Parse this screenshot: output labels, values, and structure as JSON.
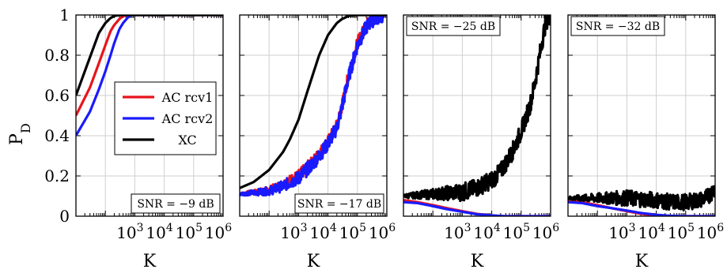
{
  "chart_data": [
    {
      "type": "line",
      "annotation": "SNR = −9 dB",
      "xlabel": "K",
      "ylabel": "P_D",
      "xscale": "log",
      "xlim": [
        10,
        1000000
      ],
      "ylim": [
        0,
        1
      ],
      "grid": true,
      "legend": {
        "placement": "center-right",
        "entries": [
          "AC rcv1",
          "AC rcv2",
          "XC"
        ]
      },
      "series": [
        {
          "name": "AC rcv1",
          "color": "#e8141c",
          "x": [
            10,
            30,
            60,
            100,
            150,
            200,
            300,
            400,
            600,
            1000,
            1000000
          ],
          "y": [
            0.5,
            0.64,
            0.76,
            0.85,
            0.92,
            0.95,
            0.98,
            0.995,
            1.0,
            1.0,
            1.0
          ]
        },
        {
          "name": "AC rcv2",
          "color": "#1a1aff",
          "x": [
            10,
            30,
            60,
            100,
            150,
            200,
            300,
            400,
            600,
            800,
            1000,
            1000000
          ],
          "y": [
            0.4,
            0.52,
            0.63,
            0.72,
            0.8,
            0.86,
            0.93,
            0.96,
            0.99,
            1.0,
            1.0,
            1.0
          ]
        },
        {
          "name": "XC",
          "color": "#000000",
          "x": [
            10,
            20,
            40,
            60,
            100,
            150,
            200,
            300,
            1000000
          ],
          "y": [
            0.6,
            0.72,
            0.84,
            0.91,
            0.96,
            0.985,
            0.995,
            1.0,
            1.0
          ]
        }
      ]
    },
    {
      "type": "line",
      "annotation": "SNR = −17 dB",
      "xlabel": "K",
      "xscale": "log",
      "xlim": [
        10,
        1000000
      ],
      "ylim": [
        0,
        1
      ],
      "grid": true,
      "series": [
        {
          "name": "AC rcv1",
          "color": "#e8141c",
          "x": [
            10,
            100,
            300,
            1000,
            3000,
            5000,
            10000,
            20000,
            30000,
            50000,
            100000,
            200000,
            300000,
            500000,
            1000000
          ],
          "y": [
            0.11,
            0.13,
            0.16,
            0.2,
            0.27,
            0.31,
            0.37,
            0.45,
            0.55,
            0.7,
            0.86,
            0.95,
            0.98,
            1.0,
            1.0
          ],
          "noise": 0.03
        },
        {
          "name": "AC rcv2",
          "color": "#1a1aff",
          "x": [
            10,
            100,
            300,
            1000,
            3000,
            5000,
            10000,
            20000,
            30000,
            50000,
            100000,
            200000,
            300000,
            500000,
            1000000
          ],
          "y": [
            0.11,
            0.125,
            0.15,
            0.19,
            0.26,
            0.3,
            0.36,
            0.44,
            0.54,
            0.69,
            0.85,
            0.94,
            0.97,
            0.99,
            1.0
          ],
          "noise": 0.035
        },
        {
          "name": "XC",
          "color": "#000000",
          "x": [
            10,
            30,
            100,
            300,
            500,
            1000,
            2000,
            3000,
            5000,
            10000,
            20000,
            30000,
            50000,
            100000,
            1000000
          ],
          "y": [
            0.14,
            0.17,
            0.23,
            0.32,
            0.38,
            0.48,
            0.62,
            0.7,
            0.8,
            0.9,
            0.96,
            0.98,
            0.995,
            1.0,
            1.0
          ]
        }
      ]
    },
    {
      "type": "line",
      "annotation": "SNR = −25 dB",
      "xlabel": "K",
      "xscale": "log",
      "xlim": [
        10,
        1000000
      ],
      "ylim": [
        0,
        1
      ],
      "grid": true,
      "series": [
        {
          "name": "AC rcv1",
          "color": "#e8141c",
          "x": [
            10,
            30,
            100,
            300,
            1000,
            3000,
            10000,
            20000,
            1000000
          ],
          "y": [
            0.08,
            0.07,
            0.055,
            0.04,
            0.025,
            0.012,
            0.003,
            0.0,
            0.0
          ]
        },
        {
          "name": "AC rcv2",
          "color": "#1a1aff",
          "x": [
            10,
            30,
            100,
            300,
            1000,
            3000,
            10000,
            30000,
            1000000
          ],
          "y": [
            0.07,
            0.065,
            0.05,
            0.035,
            0.022,
            0.01,
            0.004,
            0.0,
            0.0
          ]
        },
        {
          "name": "XC",
          "color": "#000000",
          "x": [
            10,
            100,
            1000,
            3000,
            10000,
            20000,
            50000,
            100000,
            200000,
            300000,
            500000,
            700000,
            1000000
          ],
          "y": [
            0.1,
            0.11,
            0.12,
            0.14,
            0.18,
            0.22,
            0.32,
            0.42,
            0.55,
            0.67,
            0.86,
            0.97,
            1.0
          ],
          "noise": 0.045
        }
      ]
    },
    {
      "type": "line",
      "annotation": "SNR = −32 dB",
      "xlabel": "K",
      "xscale": "log",
      "xlim": [
        10,
        1000000
      ],
      "ylim": [
        0,
        1
      ],
      "grid": true,
      "series": [
        {
          "name": "AC rcv1",
          "color": "#e8141c",
          "x": [
            10,
            30,
            100,
            300,
            1000,
            3000,
            10000,
            30000,
            1000000
          ],
          "y": [
            0.08,
            0.07,
            0.055,
            0.04,
            0.025,
            0.012,
            0.004,
            0.0,
            0.0
          ]
        },
        {
          "name": "AC rcv2",
          "color": "#1a1aff",
          "x": [
            10,
            30,
            100,
            300,
            1000,
            3000,
            10000,
            30000,
            100000,
            1000000
          ],
          "y": [
            0.07,
            0.065,
            0.05,
            0.04,
            0.028,
            0.016,
            0.007,
            0.002,
            0.0,
            0.0
          ]
        },
        {
          "name": "XC",
          "color": "#000000",
          "x": [
            10,
            100,
            1000,
            10000,
            30000,
            100000,
            300000,
            600000,
            1000000
          ],
          "y": [
            0.09,
            0.09,
            0.09,
            0.08,
            0.07,
            0.07,
            0.08,
            0.1,
            0.14
          ],
          "noise": 0.04
        }
      ]
    }
  ],
  "axes": {
    "ylabel_main": "P",
    "ylabel_sub": "D",
    "yticks": [
      "0",
      "0.2",
      "0.4",
      "0.6",
      "0.8",
      "1"
    ],
    "xtick_base": "10",
    "xtick_exponents": [
      "3",
      "4",
      "5",
      "6"
    ]
  }
}
